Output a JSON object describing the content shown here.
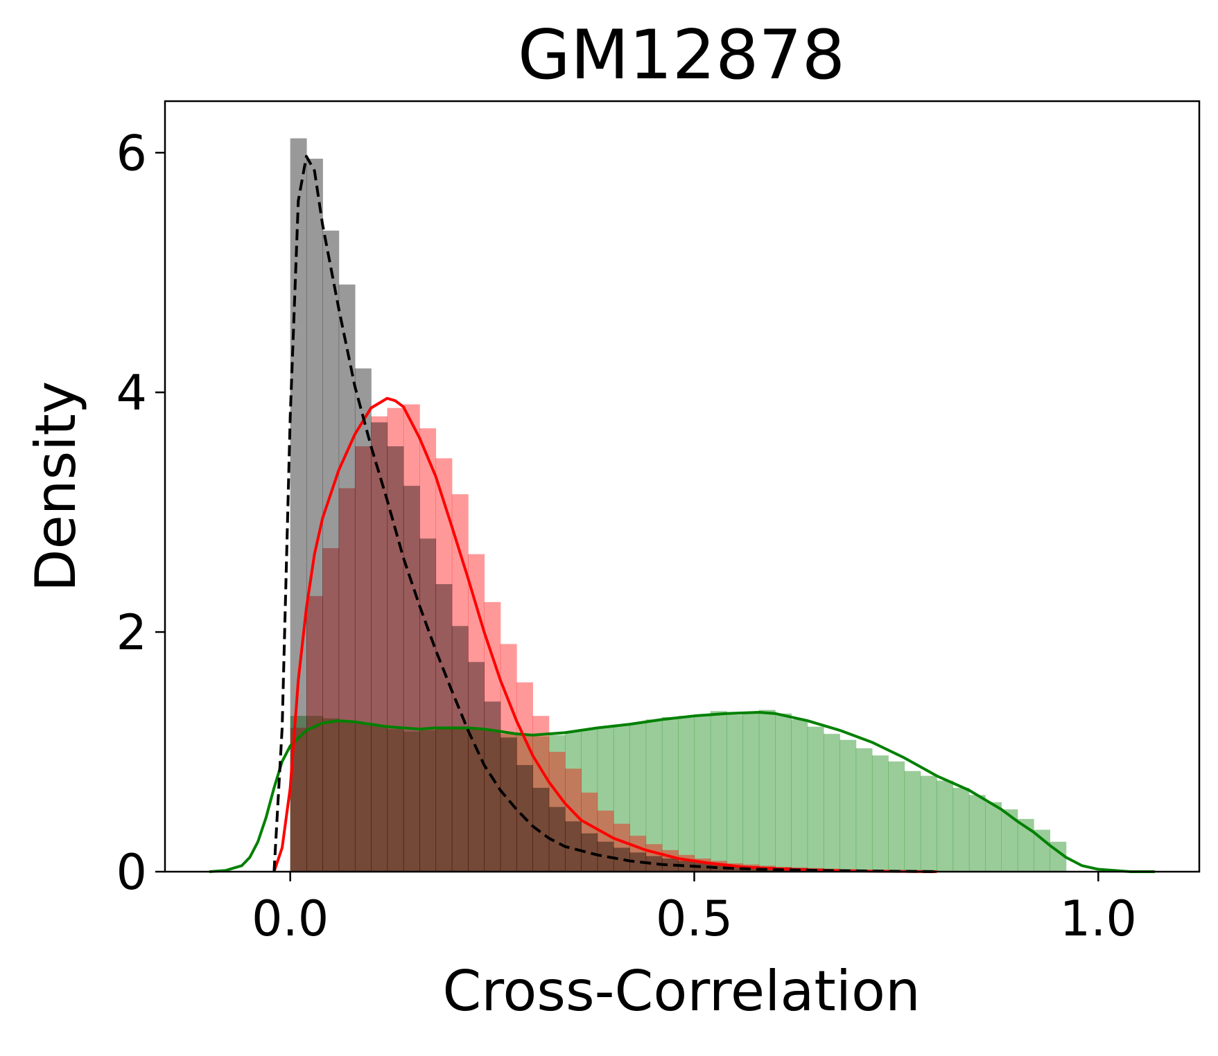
{
  "chart_data": {
    "type": "histogram+kde",
    "title": "GM12878",
    "xlabel": "Cross-Correlation",
    "ylabel": "Density",
    "xlim": [
      -0.155,
      1.125
    ],
    "ylim": [
      0,
      6.43
    ],
    "xticks": [
      0.0,
      0.5,
      1.0
    ],
    "xtick_labels": [
      "0.0",
      "0.5",
      "1.0"
    ],
    "yticks": [
      0,
      2,
      4,
      6
    ],
    "ytick_labels": [
      "0",
      "2",
      "4",
      "6"
    ],
    "grid": false,
    "legend": false,
    "bin_width": 0.02,
    "series": [
      {
        "color": "#008000",
        "bar_color": "#99cc99",
        "line_style": "solid",
        "hist_edges": [
          0.0,
          0.02,
          0.04,
          0.06,
          0.08,
          0.1,
          0.12,
          0.14,
          0.16,
          0.18,
          0.2,
          0.22,
          0.24,
          0.26,
          0.28,
          0.3,
          0.32,
          0.34,
          0.36,
          0.38,
          0.4,
          0.42,
          0.44,
          0.46,
          0.48,
          0.5,
          0.52,
          0.54,
          0.56,
          0.58,
          0.6,
          0.62,
          0.64,
          0.66,
          0.68,
          0.7,
          0.72,
          0.74,
          0.76,
          0.78,
          0.8,
          0.82,
          0.84,
          0.86,
          0.88,
          0.9,
          0.92,
          0.94,
          0.96
        ],
        "hist_values": [
          1.3,
          1.3,
          1.28,
          1.25,
          1.24,
          1.22,
          1.19,
          1.17,
          1.18,
          1.2,
          1.21,
          1.2,
          1.18,
          1.15,
          1.14,
          1.13,
          1.14,
          1.17,
          1.19,
          1.21,
          1.22,
          1.24,
          1.27,
          1.29,
          1.3,
          1.31,
          1.34,
          1.31,
          1.33,
          1.35,
          1.32,
          1.27,
          1.21,
          1.15,
          1.1,
          1.03,
          0.97,
          0.92,
          0.84,
          0.8,
          0.76,
          0.7,
          0.64,
          0.58,
          0.52,
          0.44,
          0.35,
          0.25
        ],
        "kde_x": [
          -0.1,
          -0.08,
          -0.06,
          -0.05,
          -0.04,
          -0.03,
          -0.02,
          -0.01,
          0.0,
          0.02,
          0.04,
          0.06,
          0.08,
          0.1,
          0.12,
          0.14,
          0.16,
          0.18,
          0.2,
          0.22,
          0.24,
          0.26,
          0.28,
          0.3,
          0.34,
          0.38,
          0.42,
          0.46,
          0.5,
          0.54,
          0.58,
          0.6,
          0.64,
          0.68,
          0.72,
          0.76,
          0.8,
          0.84,
          0.88,
          0.9,
          0.92,
          0.94,
          0.96,
          0.98,
          1.0,
          1.02,
          1.04,
          1.07
        ],
        "kde_y": [
          0.0,
          0.01,
          0.05,
          0.12,
          0.25,
          0.45,
          0.7,
          0.92,
          1.05,
          1.18,
          1.24,
          1.26,
          1.25,
          1.23,
          1.21,
          1.2,
          1.19,
          1.2,
          1.2,
          1.2,
          1.19,
          1.17,
          1.15,
          1.14,
          1.16,
          1.2,
          1.23,
          1.27,
          1.3,
          1.32,
          1.33,
          1.32,
          1.26,
          1.18,
          1.08,
          0.95,
          0.8,
          0.68,
          0.52,
          0.42,
          0.33,
          0.22,
          0.12,
          0.05,
          0.02,
          0.01,
          0.0,
          0.0
        ]
      },
      {
        "color": "#ff0000",
        "bar_color": "#ff9999",
        "line_style": "solid",
        "hist_edges": [
          0.0,
          0.02,
          0.04,
          0.06,
          0.08,
          0.1,
          0.12,
          0.14,
          0.16,
          0.18,
          0.2,
          0.22,
          0.24,
          0.26,
          0.28,
          0.3,
          0.32,
          0.34,
          0.36,
          0.38,
          0.4,
          0.42,
          0.44,
          0.46,
          0.48,
          0.5,
          0.52,
          0.54,
          0.56,
          0.58,
          0.6,
          0.62,
          0.64,
          0.66,
          0.68,
          0.7,
          0.72,
          0.74,
          0.76,
          0.78,
          0.8
        ],
        "hist_values": [
          1.2,
          2.3,
          2.7,
          3.2,
          3.55,
          3.8,
          3.87,
          3.9,
          3.7,
          3.45,
          3.15,
          2.65,
          2.25,
          1.9,
          1.58,
          1.3,
          1.0,
          0.86,
          0.66,
          0.51,
          0.4,
          0.3,
          0.23,
          0.18,
          0.14,
          0.11,
          0.09,
          0.07,
          0.06,
          0.05,
          0.04,
          0.035,
          0.03,
          0.025,
          0.02,
          0.015,
          0.012,
          0.01,
          0.008,
          0.006
        ],
        "kde_x": [
          -0.02,
          -0.01,
          0.0,
          0.01,
          0.02,
          0.03,
          0.04,
          0.06,
          0.08,
          0.1,
          0.12,
          0.13,
          0.14,
          0.16,
          0.18,
          0.2,
          0.22,
          0.24,
          0.26,
          0.28,
          0.3,
          0.32,
          0.34,
          0.36,
          0.4,
          0.44,
          0.48,
          0.52,
          0.56,
          0.6,
          0.64,
          0.68,
          0.72,
          0.76,
          0.8
        ],
        "kde_y": [
          0.0,
          0.2,
          0.7,
          1.6,
          2.2,
          2.65,
          2.95,
          3.35,
          3.65,
          3.87,
          3.95,
          3.93,
          3.88,
          3.62,
          3.3,
          2.88,
          2.45,
          2.0,
          1.6,
          1.26,
          0.97,
          0.75,
          0.57,
          0.43,
          0.28,
          0.18,
          0.11,
          0.07,
          0.04,
          0.025,
          0.015,
          0.008,
          0.004,
          0.002,
          0.0
        ]
      },
      {
        "color": "#000000",
        "bar_color": "#999999",
        "line_style": "dashed",
        "hist_edges": [
          0.0,
          0.02,
          0.04,
          0.06,
          0.08,
          0.1,
          0.12,
          0.14,
          0.16,
          0.18,
          0.2,
          0.22,
          0.24,
          0.26,
          0.28,
          0.3,
          0.32,
          0.34,
          0.36,
          0.38,
          0.4,
          0.42,
          0.44,
          0.46,
          0.48,
          0.5,
          0.52,
          0.54,
          0.56,
          0.58,
          0.6,
          0.62,
          0.64,
          0.66,
          0.68,
          0.7,
          0.72,
          0.74,
          0.76,
          0.78,
          0.8
        ],
        "hist_values": [
          6.12,
          5.95,
          5.35,
          4.9,
          4.2,
          3.75,
          3.55,
          3.22,
          2.78,
          2.4,
          2.05,
          1.75,
          1.42,
          1.12,
          0.89,
          0.7,
          0.54,
          0.42,
          0.32,
          0.25,
          0.2,
          0.16,
          0.13,
          0.11,
          0.09,
          0.075,
          0.06,
          0.05,
          0.045,
          0.04,
          0.035,
          0.03,
          0.025,
          0.02,
          0.015,
          0.012,
          0.01,
          0.008,
          0.006,
          0.004
        ],
        "kde_x": [
          -0.02,
          -0.01,
          0.0,
          0.01,
          0.02,
          0.03,
          0.04,
          0.06,
          0.08,
          0.1,
          0.12,
          0.14,
          0.16,
          0.18,
          0.2,
          0.22,
          0.24,
          0.26,
          0.28,
          0.3,
          0.32,
          0.34,
          0.38,
          0.42,
          0.46,
          0.5,
          0.54,
          0.58,
          0.62,
          0.66,
          0.7,
          0.74,
          0.78,
          0.8
        ],
        "kde_y": [
          0.0,
          1.2,
          3.8,
          5.6,
          5.97,
          5.85,
          5.4,
          4.7,
          4.05,
          3.55,
          3.1,
          2.62,
          2.22,
          1.85,
          1.51,
          1.18,
          0.89,
          0.68,
          0.52,
          0.38,
          0.28,
          0.21,
          0.14,
          0.09,
          0.06,
          0.045,
          0.03,
          0.02,
          0.015,
          0.01,
          0.007,
          0.004,
          0.002,
          0.0
        ]
      }
    ]
  }
}
